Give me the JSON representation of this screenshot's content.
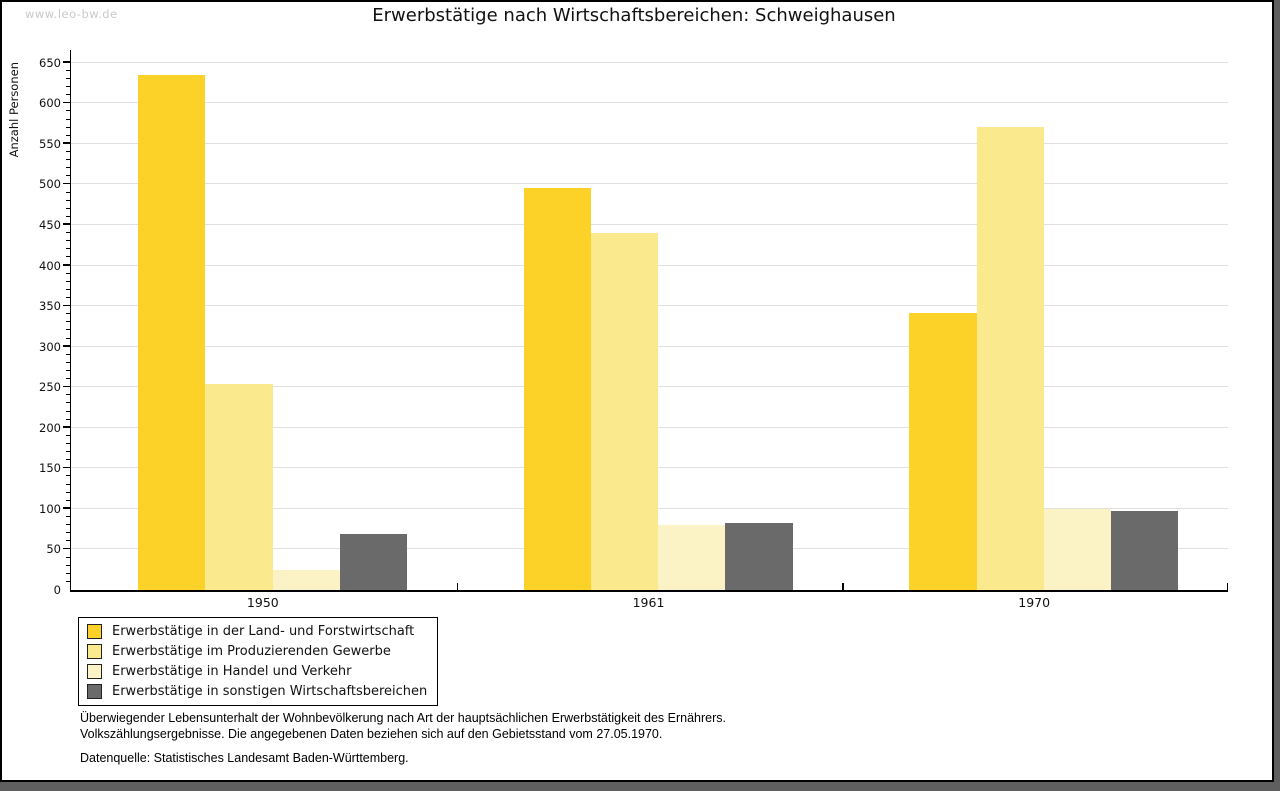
{
  "page": {
    "watermark": "www.leo-bw.de",
    "title": "Erwerbstätige nach Wirtschaftsbereichen: Schweighausen"
  },
  "chart_data": {
    "type": "bar",
    "title": "Erwerbstätige nach Wirtschaftsbereichen: Schweighausen",
    "ylabel": "Anzahl Personen",
    "xlabel": "",
    "categories": [
      "1950",
      "1961",
      "1970"
    ],
    "series": [
      {
        "name": "Erwerbstätige in der Land- und Forstwirtschaft",
        "color": "#fcd229",
        "values": [
          635,
          495,
          342
        ]
      },
      {
        "name": "Erwerbstätige im Produzierenden Gewerbe",
        "color": "#fbe98e",
        "values": [
          254,
          440,
          571
        ]
      },
      {
        "name": "Erwerbstätige in Handel und Verkehr",
        "color": "#fbf2c6",
        "values": [
          25,
          80,
          100
        ]
      },
      {
        "name": "Erwerbstätige in sonstigen Wirtschaftsbereichen",
        "color": "#6a6a6a",
        "values": [
          69,
          82,
          98
        ]
      }
    ],
    "ylim": [
      0,
      650
    ],
    "ytick_step": 50,
    "yminor_step": 10,
    "grid": true,
    "gridline_color": "#e0e0e0",
    "legend_position": "bottom-left"
  },
  "footer": {
    "line1": "Überwiegender Lebensunterhalt der Wohnbevölkerung nach Art der hauptsächlichen Erwerbstätigkeit des Ernährers.",
    "line2": "Volkszählungsergebnisse. Die angegebenen Daten beziehen sich auf den Gebietsstand vom 27.05.1970.",
    "source": "Datenquelle: Statistisches Landesamt Baden-Württemberg."
  }
}
